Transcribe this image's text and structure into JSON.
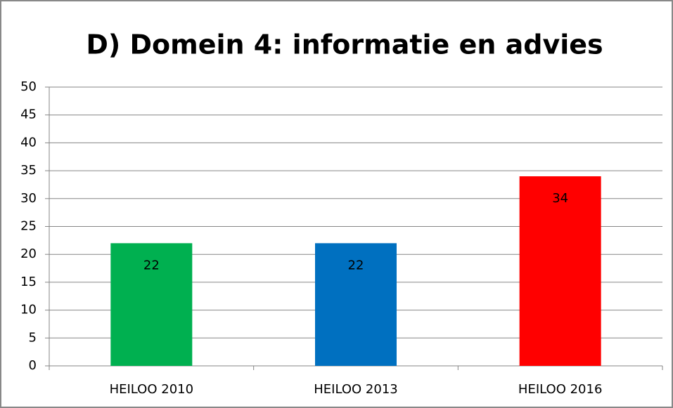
{
  "chart_data": {
    "type": "bar",
    "title": "D) Domein 4: informatie en advies",
    "categories": [
      "HEILOO 2010",
      "HEILOO 2013",
      "HEILOO 2016"
    ],
    "values": [
      22,
      22,
      34
    ],
    "colors": [
      "#00b050",
      "#0070c0",
      "#ff0000"
    ],
    "ylim": [
      0,
      50
    ],
    "yticks": [
      0,
      5,
      10,
      15,
      20,
      25,
      30,
      35,
      40,
      45,
      50
    ],
    "grid": true,
    "data_labels": true
  }
}
